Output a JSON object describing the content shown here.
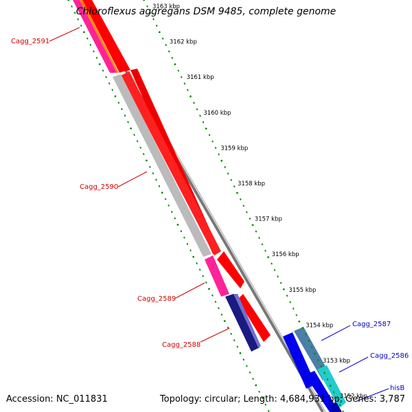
{
  "title": "Chloroflexus aggregans DSM 9485, complete genome",
  "footer": {
    "accession": "Accession: NC_011831",
    "summary": "Topology: circular; Length: 4,684,931 bp; Genes: 3,787"
  },
  "scale_labels": [
    "3163 kbp",
    "3162 kbp",
    "3161 kbp",
    "3160 kbp",
    "3159 kbp",
    "3158 kbp",
    "3157 kbp",
    "3156 kbp",
    "3155 kbp",
    "3154 kbp",
    "3153 kbp",
    "3152 kbp"
  ],
  "genes_reverse": [
    "Cagg_2591",
    "Cagg_2590",
    "Cagg_2589",
    "Cagg_2588"
  ],
  "genes_forward": [
    "Cagg_2587",
    "Cagg_2586",
    "hisB"
  ],
  "colors": {
    "reverse_label": "#cc0000",
    "forward_label": "#0000cc",
    "gene_red": "#ff0000",
    "gene_pink": "#ff2299",
    "gene_gray": "#bbbbbb",
    "gene_navy": "#1a1a80",
    "gene_blue": "#0000ee",
    "gene_steel": "#4a7fa8",
    "gene_cyan": "#22cccc",
    "gene_orange": "#ff8800",
    "tick_green": "#008800",
    "backbone_gray": "#777777"
  }
}
